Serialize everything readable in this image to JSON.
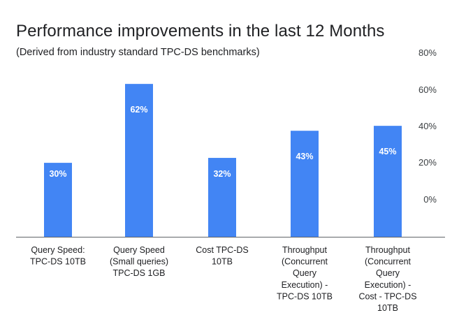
{
  "chart_data": {
    "type": "bar",
    "title": "Performance improvements in the last 12 Months",
    "subtitle": "(Derived from industry standard TPC-DS benchmarks)",
    "categories": [
      [
        "Query Speed:",
        "TPC-DS 10TB"
      ],
      [
        "Query Speed",
        "(Small queries)",
        "TPC-DS 1GB"
      ],
      [
        "Cost TPC-DS",
        "10TB"
      ],
      [
        "Throughput",
        "(Concurrent",
        "Query",
        "Execution) -",
        "TPC-DS 10TB"
      ],
      [
        "Throughput",
        "(Concurrent",
        "Query",
        "Execution) -",
        "Cost - TPC-DS",
        "10TB"
      ]
    ],
    "values": [
      30,
      62,
      32,
      43,
      45
    ],
    "data_labels": [
      "30%",
      "62%",
      "32%",
      "43%",
      "45%"
    ],
    "y_ticks": [
      "0%",
      "20%",
      "40%",
      "60%",
      "80%"
    ],
    "y_axis_side": "right",
    "ylim": [
      0,
      80
    ],
    "grid": false,
    "bar_color": "#4285f4"
  }
}
